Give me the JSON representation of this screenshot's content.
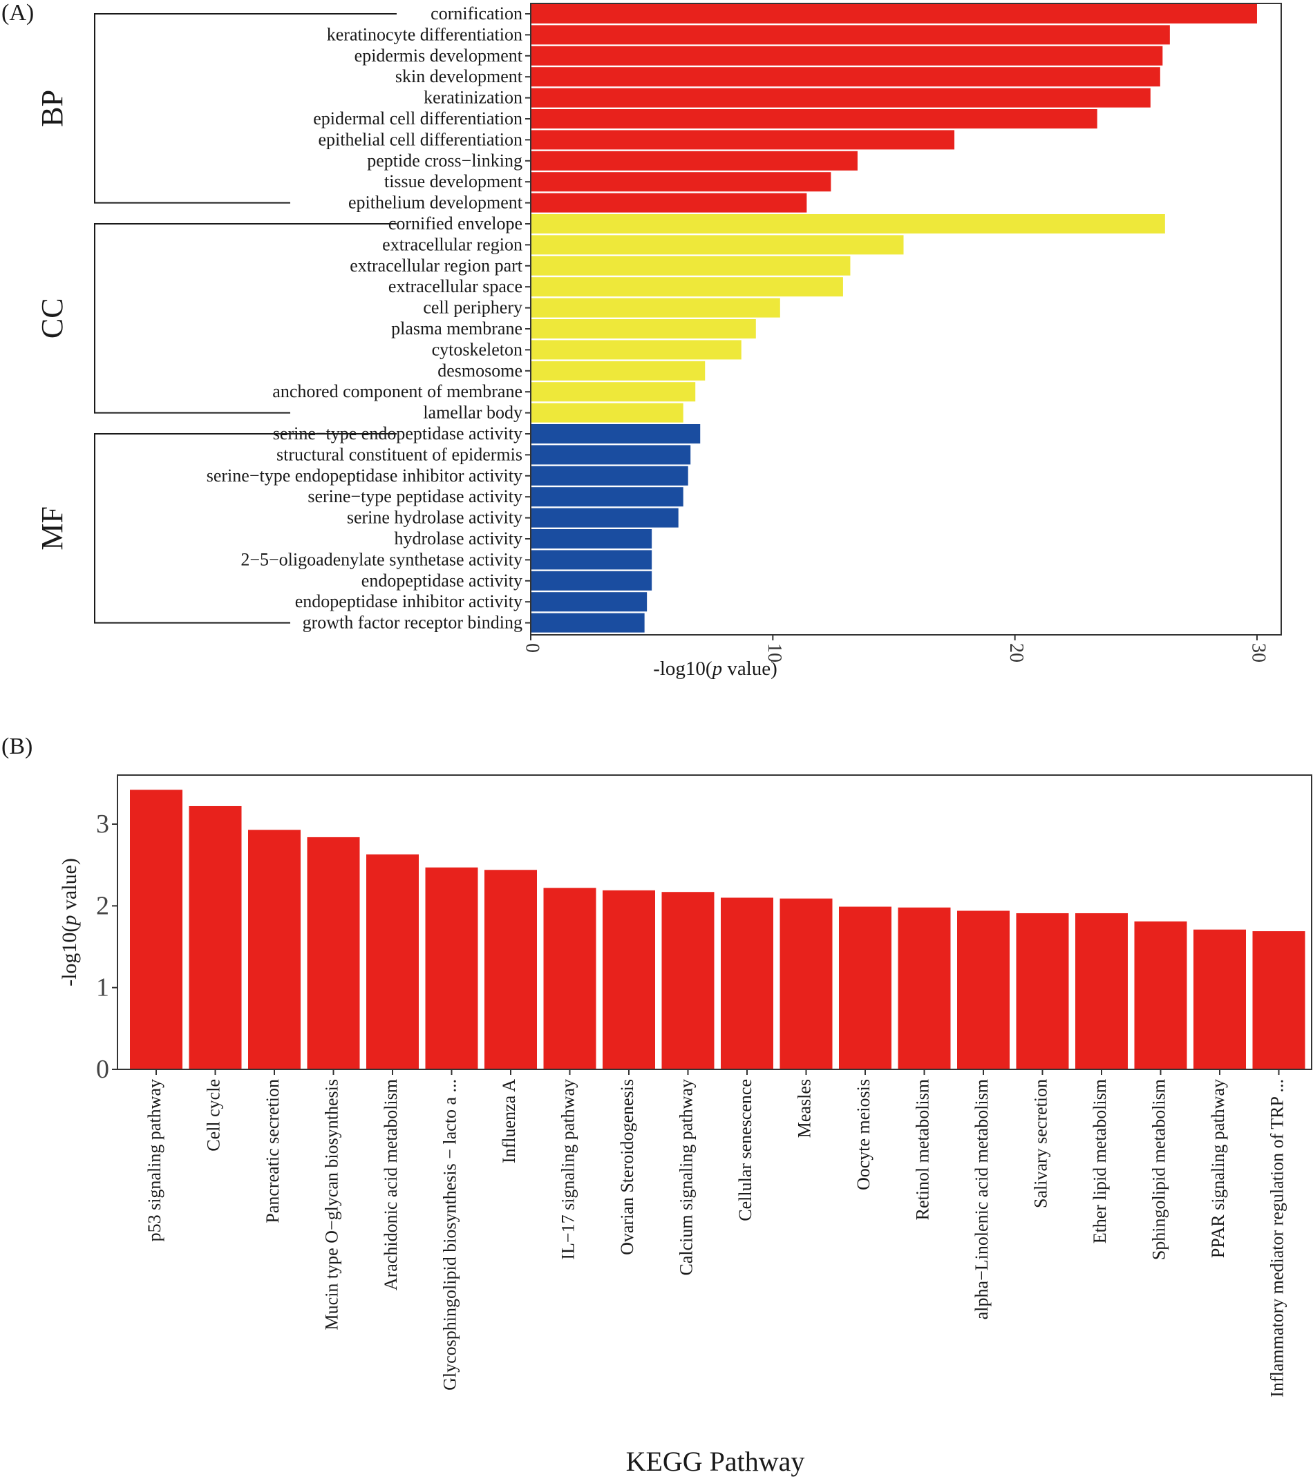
{
  "panel_labels": [
    "(A)",
    "(B)"
  ],
  "chart_data": [
    {
      "type": "bar",
      "orientation": "horizontal",
      "xlabel_prefix": "-log10(",
      "xlabel_italic": "p",
      "xlabel_suffix": " value)",
      "xlim": [
        0,
        31
      ],
      "xticks": [
        0,
        10,
        20,
        30
      ],
      "groups": [
        {
          "name": "BP",
          "color": "#e8221c",
          "categories": [
            "cornification",
            "keratinocyte differentiation",
            "epidermis development",
            "skin development",
            "keratinization",
            "epidermal cell differentiation",
            "epithelial cell differentiation",
            "peptide cross−linking",
            "tissue development",
            "epithelium development"
          ],
          "values": [
            30.0,
            26.4,
            26.1,
            26.0,
            25.6,
            23.4,
            17.5,
            13.5,
            12.4,
            11.4
          ]
        },
        {
          "name": "CC",
          "color": "#eee83a",
          "categories": [
            "cornified envelope",
            "extracellular region",
            "extracellular region part",
            "extracellular space",
            "cell periphery",
            "plasma membrane",
            "cytoskeleton",
            "desmosome",
            "anchored component of membrane",
            "lamellar body"
          ],
          "values": [
            26.2,
            15.4,
            13.2,
            12.9,
            10.3,
            9.3,
            8.7,
            7.2,
            6.8,
            6.3
          ]
        },
        {
          "name": "MF",
          "color": "#1a4da0",
          "categories": [
            "serine−type endopeptidase activity",
            "structural constituent of epidermis",
            "serine−type endopeptidase inhibitor activity",
            "serine−type peptidase activity",
            "serine hydrolase activity",
            "hydrolase activity",
            "2−5−oligoadenylate synthetase activity",
            "endopeptidase activity",
            "endopeptidase inhibitor activity",
            "growth factor receptor binding"
          ],
          "values": [
            7.0,
            6.6,
            6.5,
            6.3,
            6.1,
            5.0,
            5.0,
            5.0,
            4.8,
            4.7
          ]
        }
      ]
    },
    {
      "type": "bar",
      "orientation": "vertical",
      "color": "#e8221c",
      "xlabel": "KEGG Pathway",
      "ylabel_prefix": "-log10(",
      "ylabel_italic": "p",
      "ylabel_suffix": " value)",
      "ylim": [
        0,
        3.6
      ],
      "yticks": [
        0,
        1,
        2,
        3
      ],
      "categories": [
        "p53 signaling pathway",
        "Cell cycle",
        "Pancreatic secretion",
        "Mucin type O−glycan biosynthesis",
        "Arachidonic acid metabolism",
        "Glycosphingolipid biosynthesis − lacto a ...",
        "Influenza A",
        "IL−17 signaling pathway",
        "Ovarian Steroidogenesis",
        "Calcium signaling pathway",
        "Cellular senescence",
        "Measles",
        "Oocyte meiosis",
        "Retinol metabolism",
        "alpha−Linolenic acid metabolism",
        "Salivary secretion",
        "Ether lipid metabolism",
        "Sphingolipid metabolism",
        "PPAR signaling pathway",
        "Inflammatory mediator regulation of TRP ..."
      ],
      "values": [
        3.42,
        3.22,
        2.93,
        2.84,
        2.63,
        2.47,
        2.44,
        2.22,
        2.19,
        2.17,
        2.1,
        2.09,
        1.99,
        1.98,
        1.94,
        1.91,
        1.91,
        1.81,
        1.71,
        1.69
      ]
    }
  ]
}
